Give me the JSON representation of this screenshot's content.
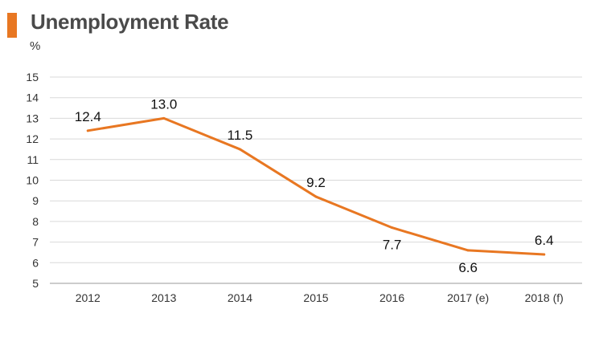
{
  "header": {
    "title": "Unemployment Rate",
    "accent_color": "#E87722"
  },
  "chart_data": {
    "type": "line",
    "title": "Unemployment Rate",
    "ylabel": "%",
    "xlabel": "",
    "categories": [
      "2012",
      "2013",
      "2014",
      "2015",
      "2016",
      "2017 (e)",
      "2018 (f)"
    ],
    "series": [
      {
        "values": [
          12.4,
          13.0,
          11.5,
          9.2,
          7.7,
          6.6,
          6.4
        ],
        "color": "#E87722"
      }
    ],
    "data_labels": [
      "12.4",
      "13.0",
      "11.5",
      "9.2",
      "7.7",
      "6.6",
      "6.4"
    ],
    "ylim": [
      5,
      15
    ],
    "yticks": [
      "5",
      "6",
      "7",
      "8",
      "9",
      "10",
      "11",
      "12",
      "13",
      "14",
      "15"
    ],
    "grid": true,
    "legend": "none"
  }
}
